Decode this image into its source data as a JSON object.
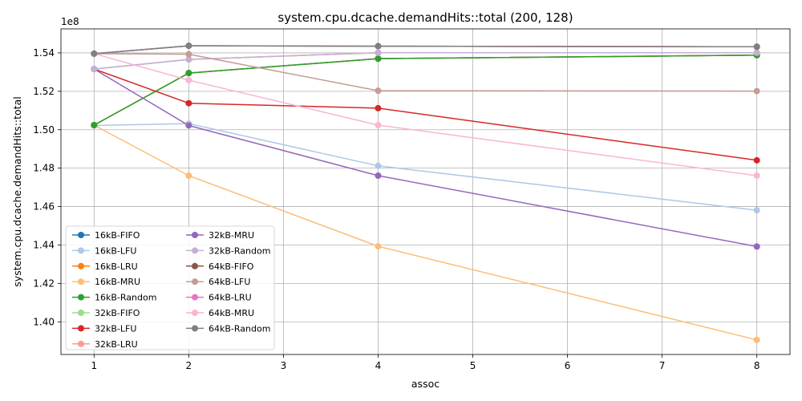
{
  "chart_data": {
    "type": "line",
    "title": "system.cpu.dcache.demandHits::total (200, 128)",
    "xlabel": "assoc",
    "ylabel": "system.cpu.dcache.demandHits::total",
    "y_offset_label": "1e8",
    "xlim": [
      0.65,
      8.35
    ],
    "ylim": [
      1.383,
      1.5525
    ],
    "x_ticks": [
      1,
      2,
      3,
      4,
      5,
      6,
      7,
      8
    ],
    "y_ticks": [
      1.4,
      1.42,
      1.44,
      1.46,
      1.48,
      1.5,
      1.52,
      1.54
    ],
    "y_tick_labels": [
      "1.40",
      "1.42",
      "1.44",
      "1.46",
      "1.48",
      "1.50",
      "1.52",
      "1.54"
    ],
    "grid": true,
    "legend_position": "lower-left",
    "legend_columns": 2,
    "x": [
      1,
      2,
      4,
      8
    ],
    "series": [
      {
        "name": "16kB-FIFO",
        "color": "#1f77b4",
        "values": [
          1.5024,
          1.5295,
          1.537,
          1.5388
        ]
      },
      {
        "name": "16kB-LFU",
        "color": "#aec7e8",
        "values": [
          1.5022,
          1.5032,
          1.4812,
          1.4581
        ]
      },
      {
        "name": "16kB-LRU",
        "color": "#ff7f0e",
        "values": [
          1.5024,
          1.5295,
          1.537,
          1.5388
        ]
      },
      {
        "name": "16kB-MRU",
        "color": "#ffbb78",
        "values": [
          1.5024,
          1.4761,
          1.4393,
          1.3906
        ]
      },
      {
        "name": "16kB-Random",
        "color": "#2ca02c",
        "values": [
          1.5024,
          1.5295,
          1.537,
          1.5388
        ]
      },
      {
        "name": "32kB-FIFO",
        "color": "#98df8a",
        "values": [
          1.5316,
          1.5366,
          1.5401,
          1.5401
        ]
      },
      {
        "name": "32kB-LFU",
        "color": "#d62728",
        "values": [
          1.5316,
          1.5138,
          1.5112,
          1.4841
        ]
      },
      {
        "name": "32kB-LRU",
        "color": "#ff9896",
        "values": [
          1.5316,
          1.5366,
          1.5401,
          1.5401
        ]
      },
      {
        "name": "32kB-MRU",
        "color": "#9467bd",
        "values": [
          1.5316,
          1.5022,
          1.4761,
          1.4392
        ]
      },
      {
        "name": "32kB-Random",
        "color": "#c5b0d5",
        "values": [
          1.5316,
          1.5366,
          1.5401,
          1.5401
        ]
      },
      {
        "name": "64kB-FIFO",
        "color": "#8c564b",
        "values": [
          1.5396,
          1.5437,
          1.5435,
          1.5432
        ]
      },
      {
        "name": "64kB-LFU",
        "color": "#c49c94",
        "values": [
          1.5396,
          1.5393,
          1.5203,
          1.5201
        ]
      },
      {
        "name": "64kB-LRU",
        "color": "#e377c2",
        "values": [
          1.5396,
          1.5437,
          1.5435,
          1.5432
        ]
      },
      {
        "name": "64kB-MRU",
        "color": "#f7b6d2",
        "values": [
          1.5396,
          1.5258,
          1.5024,
          1.4761
        ]
      },
      {
        "name": "64kB-Random",
        "color": "#7f7f7f",
        "values": [
          1.5396,
          1.5437,
          1.5435,
          1.5432
        ]
      }
    ]
  }
}
